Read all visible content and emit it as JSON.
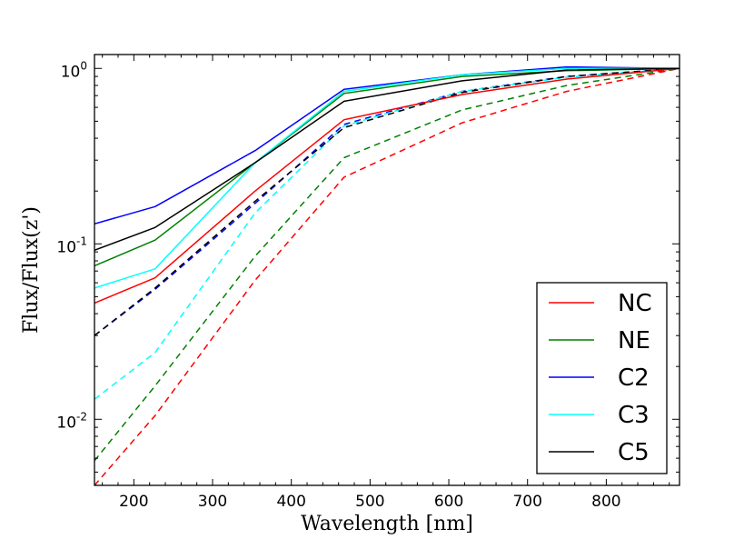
{
  "chart_data": {
    "type": "line",
    "xlabel": "Wavelength [nm]",
    "ylabel": "Flux/Flux(z')",
    "xlim": [
      150,
      893
    ],
    "ylim": [
      0.0042,
      1.2
    ],
    "yscale": "log",
    "x_ticks": [
      200,
      300,
      400,
      500,
      600,
      700,
      800
    ],
    "x_tick_labels": [
      "200",
      "300",
      "400",
      "500",
      "600",
      "700",
      "800"
    ],
    "y_major_ticks": [
      0.01,
      0.1,
      1
    ],
    "y_tick_labels": [
      {
        "base": "10",
        "exp": "-2"
      },
      {
        "base": "10",
        "exp": "-1"
      },
      {
        "base": "10",
        "exp": "0"
      }
    ],
    "legend_position": "lower right",
    "x": [
      150,
      227,
      354,
      467,
      617,
      750,
      893
    ],
    "series": [
      {
        "name": "NC",
        "color": "#ff0000",
        "style": "solid",
        "values": [
          0.046,
          0.064,
          0.2,
          0.51,
          0.71,
          0.87,
          1.0
        ]
      },
      {
        "name": "NE",
        "color": "#008000",
        "style": "solid",
        "values": [
          0.075,
          0.105,
          0.29,
          0.72,
          0.9,
          0.97,
          1.0
        ]
      },
      {
        "name": "C2",
        "color": "#0000ff",
        "style": "solid",
        "values": [
          0.13,
          0.163,
          0.34,
          0.76,
          0.92,
          1.02,
          1.0
        ]
      },
      {
        "name": "C3",
        "color": "#00ffff",
        "style": "solid",
        "values": [
          0.056,
          0.072,
          0.29,
          0.74,
          0.92,
          1.0,
          1.0
        ]
      },
      {
        "name": "C5",
        "color": "#000000",
        "style": "solid",
        "values": [
          0.092,
          0.124,
          0.29,
          0.65,
          0.85,
          0.98,
          1.0
        ]
      },
      {
        "name": "NC",
        "color": "#ff0000",
        "style": "dashed",
        "values": [
          0.0042,
          0.0105,
          0.062,
          0.24,
          0.49,
          0.74,
          1.0
        ]
      },
      {
        "name": "NE",
        "color": "#008000",
        "style": "dashed",
        "values": [
          0.0058,
          0.0155,
          0.085,
          0.31,
          0.58,
          0.8,
          1.0
        ]
      },
      {
        "name": "C2",
        "color": "#0000ff",
        "style": "dashed",
        "values": [
          0.03,
          0.055,
          0.17,
          0.48,
          0.74,
          0.9,
          1.0
        ]
      },
      {
        "name": "C3",
        "color": "#00ffff",
        "style": "dashed",
        "values": [
          0.013,
          0.024,
          0.15,
          0.47,
          0.74,
          0.89,
          1.0
        ]
      },
      {
        "name": "C5",
        "color": "#000000",
        "style": "dashed",
        "values": [
          0.03,
          0.056,
          0.175,
          0.46,
          0.73,
          0.9,
          1.0
        ]
      }
    ],
    "legend": [
      {
        "name": "NC",
        "color": "#ff0000"
      },
      {
        "name": "NE",
        "color": "#008000"
      },
      {
        "name": "C2",
        "color": "#0000ff"
      },
      {
        "name": "C3",
        "color": "#00ffff"
      },
      {
        "name": "C5",
        "color": "#000000"
      }
    ]
  }
}
